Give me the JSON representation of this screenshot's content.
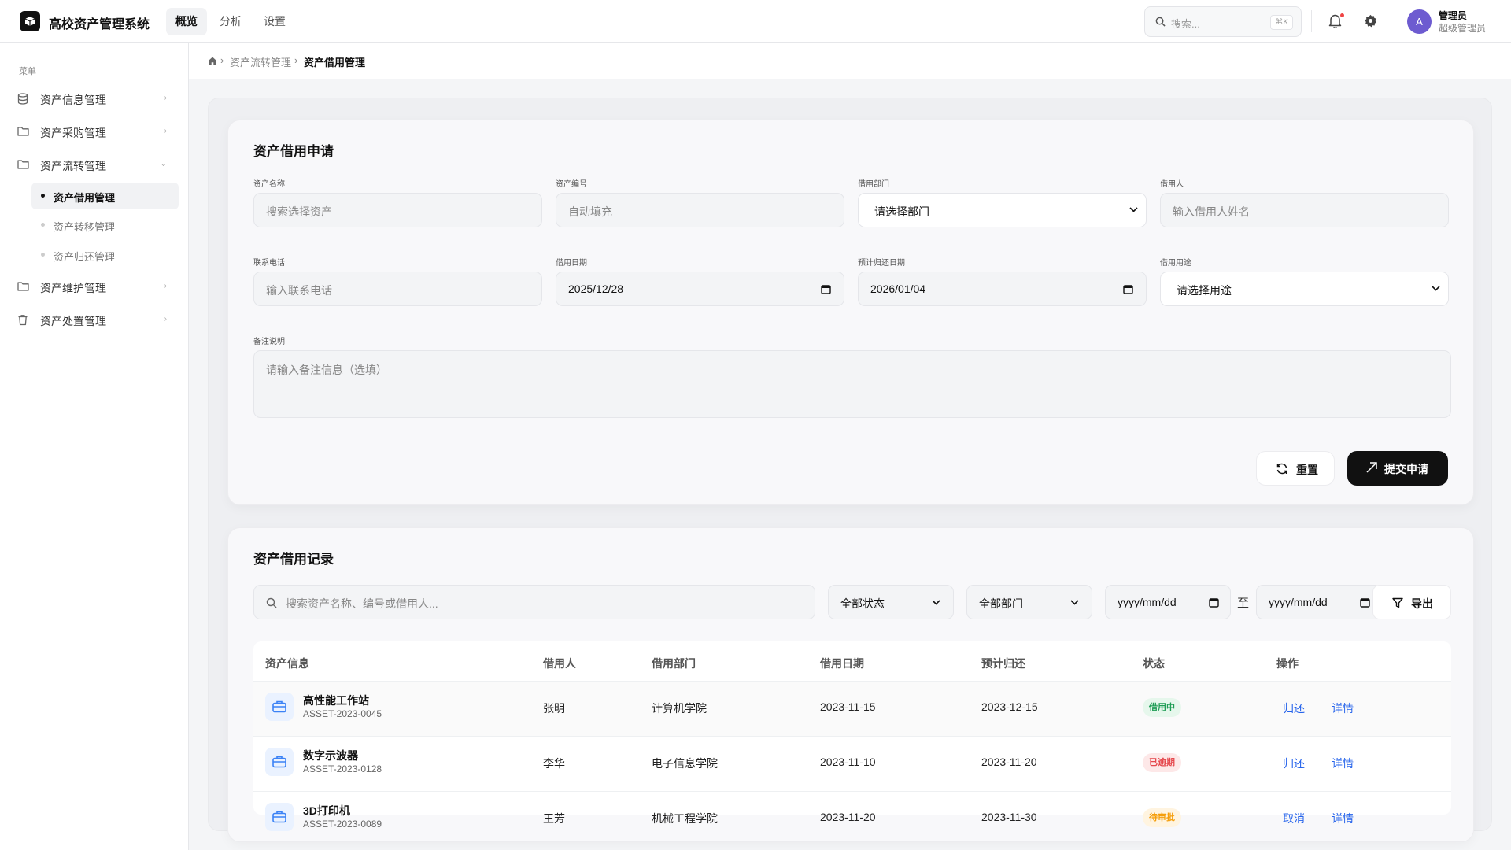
{
  "header": {
    "app_title": "高校资产管理系统",
    "tabs": [
      {
        "label": "概览",
        "active": true
      },
      {
        "label": "分析",
        "active": false
      },
      {
        "label": "设置",
        "active": false
      }
    ],
    "search_placeholder": "搜索...",
    "search_shortcut": "⌘K",
    "user_name": "管理员",
    "user_role": "超级管理员",
    "avatar_initial": "A"
  },
  "sidebar": {
    "menu_title": "菜单",
    "items": [
      {
        "label": "资产信息管理",
        "icon": "database-icon"
      },
      {
        "label": "资产采购管理",
        "icon": "folder-icon"
      },
      {
        "label": "资产流转管理",
        "icon": "folder-icon",
        "expanded": true
      },
      {
        "label": "资产维护管理",
        "icon": "folder-icon"
      },
      {
        "label": "资产处置管理",
        "icon": "trash-icon"
      }
    ],
    "sub_items": [
      {
        "label": "资产借用管理",
        "active": true
      },
      {
        "label": "资产转移管理",
        "active": false
      },
      {
        "label": "资产归还管理",
        "active": false
      }
    ]
  },
  "breadcrumb": {
    "parent": "资产流转管理",
    "current": "资产借用管理"
  },
  "form": {
    "title": "资产借用申请",
    "fields": {
      "asset_name": {
        "label": "资产名称",
        "placeholder": "搜索选择资产"
      },
      "asset_code": {
        "label": "资产编号",
        "placeholder": "自动填充"
      },
      "department": {
        "label": "借用部门",
        "value": "请选择部门"
      },
      "borrower": {
        "label": "借用人",
        "placeholder": "输入借用人姓名"
      },
      "phone": {
        "label": "联系电话",
        "placeholder": "输入联系电话"
      },
      "borrow_date": {
        "label": "借用日期",
        "value": "2025/12/28"
      },
      "return_date": {
        "label": "预计归还日期",
        "value": "2026/01/04"
      },
      "purpose": {
        "label": "借用用途",
        "value": "请选择用途"
      },
      "remark": {
        "label": "备注说明",
        "placeholder": "请输入备注信息（选填）"
      }
    },
    "reset_label": "重置",
    "submit_label": "提交申请"
  },
  "records": {
    "title": "资产借用记录",
    "search_placeholder": "搜索资产名称、编号或借用人...",
    "status_filter": "全部状态",
    "dept_filter": "全部部门",
    "date_placeholder": "yyyy/mm/dd",
    "to_label": "至",
    "export_label": "导出",
    "columns": [
      "资产信息",
      "借用人",
      "借用部门",
      "借用日期",
      "预计归还",
      "状态",
      "操作"
    ],
    "rows": [
      {
        "name": "高性能工作站",
        "code": "ASSET-2023-0045",
        "borrower": "张明",
        "dept": "计算机学院",
        "borrow_date": "2023-11-15",
        "return_date": "2023-12-15",
        "status": "借用中",
        "status_color": "#1f9d55",
        "actions": [
          "归还",
          "详情"
        ]
      },
      {
        "name": "数字示波器",
        "code": "ASSET-2023-0128",
        "borrower": "李华",
        "dept": "电子信息学院",
        "borrow_date": "2023-11-10",
        "return_date": "2023-11-20",
        "status": "已逾期",
        "status_color": "#e5484d",
        "actions": [
          "归还",
          "详情"
        ]
      },
      {
        "name": "3D打印机",
        "code": "ASSET-2023-0089",
        "borrower": "王芳",
        "dept": "机械工程学院",
        "borrow_date": "2023-11-20",
        "return_date": "2023-11-30",
        "status": "待审批",
        "status_color": "#f59e0b",
        "actions": [
          "取消",
          "详情"
        ]
      }
    ]
  }
}
